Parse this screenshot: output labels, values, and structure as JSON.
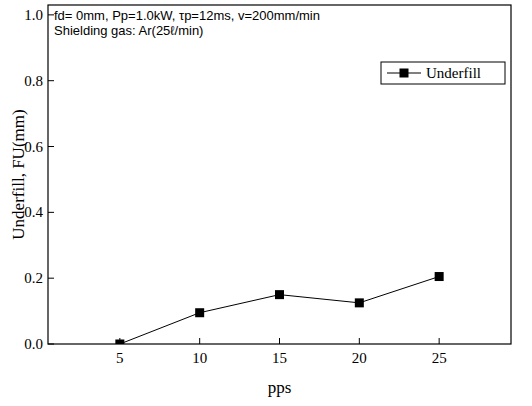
{
  "chart_data": {
    "type": "line",
    "annotations": [
      "fd= 0mm, Pp=1.0kW, τp=12ms, v=200mm/min",
      "Shielding gas: Ar(25ℓ/min)"
    ],
    "x_label": "pps",
    "y_label": "Underfill, FU(mm)",
    "x": [
      5,
      10,
      15,
      20,
      25
    ],
    "series": [
      {
        "name": "Underfill",
        "color": "#000000",
        "marker": "square",
        "line_style": "solid",
        "values": [
          0,
          0.095,
          0.15,
          0.125,
          0.205
        ]
      }
    ],
    "xlim": [
      0.5,
      29.5
    ],
    "xticks": [
      5,
      10,
      15,
      20,
      25
    ],
    "ylim": [
      0,
      1.03
    ],
    "yticks": [
      {
        "value": 0,
        "label": "0.0"
      },
      {
        "value": 0.2,
        "label": "0.2"
      },
      {
        "value": 0.4,
        "label": "0.4"
      },
      {
        "value": 0.6,
        "label": "0.6"
      },
      {
        "value": 0.8,
        "label": "0.8"
      },
      {
        "value": 1.0,
        "label": "1.0"
      }
    ],
    "legend": "top-right",
    "grid": false
  }
}
